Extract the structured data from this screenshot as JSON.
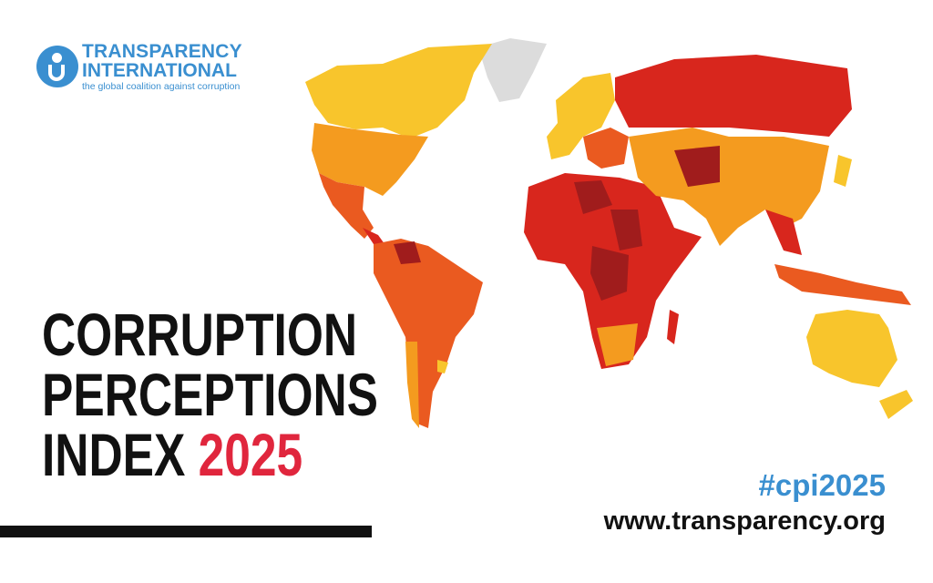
{
  "logo": {
    "line1": "TRANSPARENCY",
    "line2": "INTERNATIONAL",
    "tagline": "the global coalition against corruption"
  },
  "title": {
    "line1": "CORRUPTION",
    "line2": "PERCEPTIONS",
    "line3": "INDEX",
    "year": "2025"
  },
  "hashtag": "#cpi2025",
  "url": "www.transparency.org",
  "colors": {
    "brand_blue": "#3a8fd0",
    "year_red": "#e0263d",
    "map_scale": [
      "#f8c52c",
      "#f49b1f",
      "#ea5a20",
      "#d8261d",
      "#a01c1c",
      "#dcdcdc"
    ]
  }
}
